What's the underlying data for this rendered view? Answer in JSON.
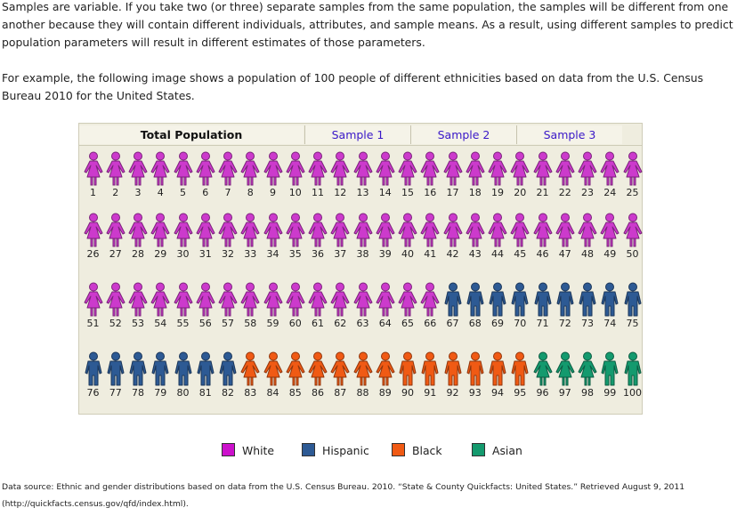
{
  "intro": {
    "paragraph1": "Samples are variable. If you take two (or three) separate samples from the same population, the samples will be different from one another because they will contain different individuals, attributes, and sample means. As a result, using different samples to predict population parameters will result in different estimates of those parameters.",
    "paragraph2": "For example, the following image shows a population of 100 people of different ethnicities based on data from the U.S. Census Bureau 2010 for the United States."
  },
  "figure": {
    "headers": {
      "total": "Total Population",
      "sample1": "Sample 1",
      "sample2": "Sample 2",
      "sample3": "Sample 3"
    },
    "groups": [
      {
        "name": "White",
        "color": "#cc3acc",
        "from": 1,
        "to": 66
      },
      {
        "name": "Hispanic",
        "color": "#2d5a94",
        "from": 67,
        "to": 82
      },
      {
        "name": "Black",
        "color": "#f05a14",
        "from": 83,
        "to": 95
      },
      {
        "name": "Asian",
        "color": "#149a6e",
        "from": 96,
        "to": 100
      }
    ],
    "people": [
      "1",
      "2",
      "3",
      "4",
      "5",
      "6",
      "7",
      "8",
      "9",
      "10",
      "11",
      "12",
      "13",
      "14",
      "15",
      "16",
      "17",
      "18",
      "19",
      "20",
      "21",
      "22",
      "23",
      "24",
      "25",
      "26",
      "27",
      "28",
      "29",
      "30",
      "31",
      "32",
      "33",
      "34",
      "35",
      "36",
      "37",
      "38",
      "39",
      "40",
      "41",
      "42",
      "43",
      "44",
      "45",
      "46",
      "47",
      "48",
      "49",
      "50",
      "51",
      "52",
      "53",
      "54",
      "55",
      "56",
      "57",
      "58",
      "59",
      "60",
      "61",
      "62",
      "63",
      "64",
      "65",
      "66",
      "67",
      "68",
      "69",
      "70",
      "71",
      "72",
      "73",
      "74",
      "75",
      "76",
      "77",
      "78",
      "79",
      "80",
      "81",
      "82",
      "83",
      "84",
      "85",
      "86",
      "87",
      "88",
      "89",
      "90",
      "91",
      "92",
      "93",
      "94",
      "95",
      "96",
      "97",
      "98",
      "99",
      "100"
    ]
  },
  "legend": [
    {
      "label": "White",
      "color": "#cc11cc"
    },
    {
      "label": "Hispanic",
      "color": "#2d5a94"
    },
    {
      "label": "Black",
      "color": "#f05a14"
    },
    {
      "label": "Asian",
      "color": "#149a6e"
    }
  ],
  "source": {
    "line1": "Data source: Ethnic and gender distributions based on data from the U.S. Census Bureau. 2010. “State & County Quickfacts: United States.” Retrieved August 9, 2011",
    "line2": "(http://quickfacts.census.gov/qfd/index.html)."
  }
}
